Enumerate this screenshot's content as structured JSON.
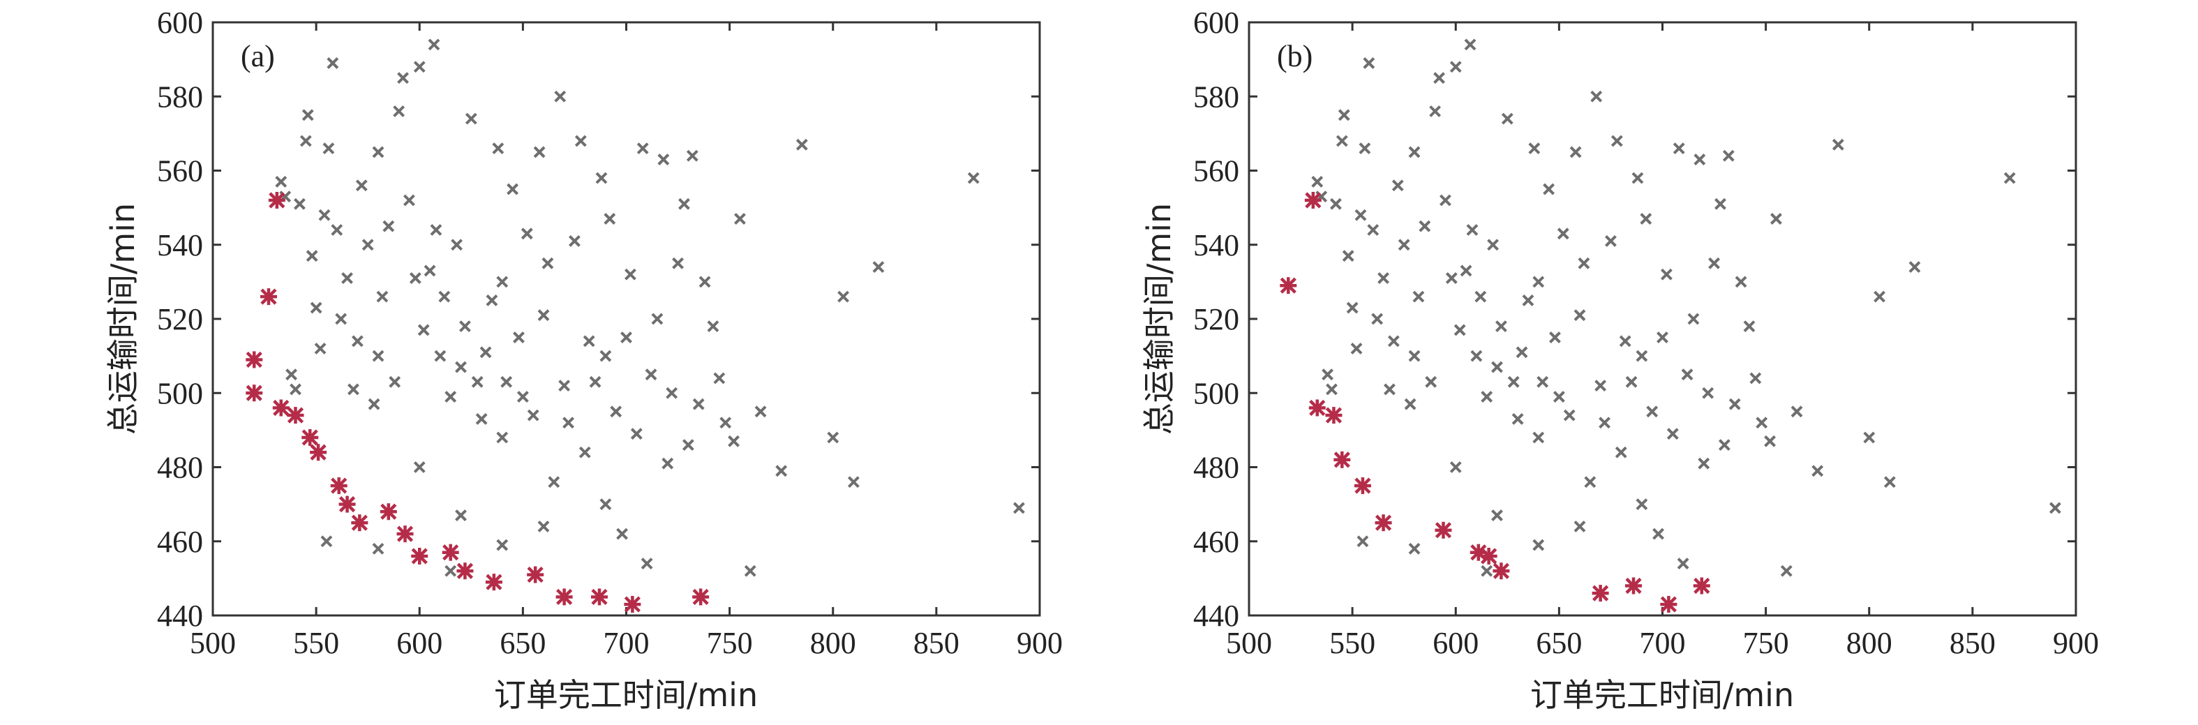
{
  "colors": {
    "dominated": "#6e6e6e",
    "pareto": "#b52c48",
    "axes": "#333333"
  },
  "chart_data": [
    {
      "type": "scatter",
      "panel_label": "(a)",
      "xlabel": "订单完工时间/min",
      "ylabel": "总运输时间/min",
      "xlim": [
        500,
        900
      ],
      "ylim": [
        440,
        600
      ],
      "xticks": [
        "500",
        "550",
        "600",
        "650",
        "700",
        "750",
        "800",
        "850",
        "900"
      ],
      "yticks": [
        "440",
        "460",
        "480",
        "500",
        "520",
        "540",
        "560",
        "580",
        "600"
      ],
      "grid": false,
      "series": [
        {
          "marker": "x",
          "color": "#6e6e6e",
          "points": [
            [
              533,
              557
            ],
            [
              535,
              553
            ],
            [
              538,
              505
            ],
            [
              540,
              501
            ],
            [
              542,
              551
            ],
            [
              545,
              568
            ],
            [
              546,
              575
            ],
            [
              548,
              537
            ],
            [
              550,
              523
            ],
            [
              552,
              512
            ],
            [
              554,
              548
            ],
            [
              556,
              566
            ],
            [
              558,
              589
            ],
            [
              560,
              544
            ],
            [
              562,
              520
            ],
            [
              565,
              531
            ],
            [
              568,
              501
            ],
            [
              570,
              514
            ],
            [
              572,
              556
            ],
            [
              575,
              540
            ],
            [
              578,
              497
            ],
            [
              580,
              565
            ],
            [
              582,
              526
            ],
            [
              585,
              545
            ],
            [
              588,
              503
            ],
            [
              590,
              576
            ],
            [
              592,
              585
            ],
            [
              595,
              552
            ],
            [
              598,
              531
            ],
            [
              600,
              588
            ],
            [
              602,
              517
            ],
            [
              605,
              533
            ],
            [
              607,
              594
            ],
            [
              608,
              544
            ],
            [
              610,
              510
            ],
            [
              612,
              526
            ],
            [
              615,
              499
            ],
            [
              618,
              540
            ],
            [
              620,
              507
            ],
            [
              622,
              518
            ],
            [
              625,
              574
            ],
            [
              628,
              503
            ],
            [
              630,
              493
            ],
            [
              632,
              511
            ],
            [
              635,
              525
            ],
            [
              638,
              566
            ],
            [
              640,
              488
            ],
            [
              642,
              503
            ],
            [
              645,
              555
            ],
            [
              648,
              515
            ],
            [
              650,
              499
            ],
            [
              652,
              543
            ],
            [
              655,
              494
            ],
            [
              658,
              565
            ],
            [
              660,
              521
            ],
            [
              662,
              535
            ],
            [
              665,
              476
            ],
            [
              668,
              580
            ],
            [
              670,
              502
            ],
            [
              672,
              492
            ],
            [
              675,
              541
            ],
            [
              678,
              568
            ],
            [
              680,
              484
            ],
            [
              682,
              514
            ],
            [
              685,
              503
            ],
            [
              688,
              558
            ],
            [
              690,
              470
            ],
            [
              692,
              547
            ],
            [
              695,
              495
            ],
            [
              698,
              462
            ],
            [
              700,
              515
            ],
            [
              702,
              532
            ],
            [
              705,
              489
            ],
            [
              708,
              566
            ],
            [
              710,
              454
            ],
            [
              712,
              505
            ],
            [
              715,
              520
            ],
            [
              718,
              563
            ],
            [
              720,
              481
            ],
            [
              722,
              500
            ],
            [
              725,
              535
            ],
            [
              728,
              551
            ],
            [
              730,
              486
            ],
            [
              732,
              564
            ],
            [
              735,
              497
            ],
            [
              738,
              530
            ],
            [
              742,
              518
            ],
            [
              745,
              504
            ],
            [
              748,
              492
            ],
            [
              752,
              487
            ],
            [
              755,
              547
            ],
            [
              760,
              452
            ],
            [
              765,
              495
            ],
            [
              775,
              479
            ],
            [
              785,
              567
            ],
            [
              800,
              488
            ],
            [
              805,
              526
            ],
            [
              810,
              476
            ],
            [
              822,
              534
            ],
            [
              868,
              558
            ],
            [
              890,
              469
            ],
            [
              555,
              460
            ],
            [
              580,
              458
            ],
            [
              615,
              452
            ],
            [
              640,
              459
            ],
            [
              600,
              480
            ],
            [
              620,
              467
            ],
            [
              660,
              464
            ],
            [
              690,
              510
            ],
            [
              640,
              530
            ],
            [
              580,
              510
            ]
          ]
        },
        {
          "marker": "*",
          "color": "#b52c48",
          "points": [
            [
              520,
              509
            ],
            [
              520,
              500
            ],
            [
              527,
              526
            ],
            [
              531,
              552
            ],
            [
              533,
              496
            ],
            [
              540,
              494
            ],
            [
              547,
              488
            ],
            [
              551,
              484
            ],
            [
              561,
              475
            ],
            [
              565,
              470
            ],
            [
              571,
              465
            ],
            [
              585,
              468
            ],
            [
              593,
              462
            ],
            [
              600,
              456
            ],
            [
              615,
              457
            ],
            [
              622,
              452
            ],
            [
              636,
              449
            ],
            [
              656,
              451
            ],
            [
              670,
              445
            ],
            [
              687,
              445
            ],
            [
              703,
              443
            ],
            [
              736,
              445
            ]
          ]
        }
      ]
    },
    {
      "type": "scatter",
      "panel_label": "(b)",
      "xlabel": "订单完工时间/min",
      "ylabel": "总运输时间/min",
      "xlim": [
        500,
        900
      ],
      "ylim": [
        440,
        600
      ],
      "xticks": [
        "500",
        "550",
        "600",
        "650",
        "700",
        "750",
        "800",
        "850",
        "900"
      ],
      "yticks": [
        "440",
        "460",
        "480",
        "500",
        "520",
        "540",
        "560",
        "580",
        "600"
      ],
      "grid": false,
      "series": [
        {
          "marker": "x",
          "color": "#6e6e6e",
          "points": [
            [
              533,
              557
            ],
            [
              535,
              553
            ],
            [
              538,
              505
            ],
            [
              540,
              501
            ],
            [
              542,
              551
            ],
            [
              545,
              568
            ],
            [
              546,
              575
            ],
            [
              548,
              537
            ],
            [
              550,
              523
            ],
            [
              552,
              512
            ],
            [
              554,
              548
            ],
            [
              556,
              566
            ],
            [
              558,
              589
            ],
            [
              560,
              544
            ],
            [
              562,
              520
            ],
            [
              565,
              531
            ],
            [
              568,
              501
            ],
            [
              570,
              514
            ],
            [
              572,
              556
            ],
            [
              575,
              540
            ],
            [
              578,
              497
            ],
            [
              580,
              565
            ],
            [
              582,
              526
            ],
            [
              585,
              545
            ],
            [
              588,
              503
            ],
            [
              590,
              576
            ],
            [
              592,
              585
            ],
            [
              595,
              552
            ],
            [
              598,
              531
            ],
            [
              600,
              588
            ],
            [
              602,
              517
            ],
            [
              605,
              533
            ],
            [
              607,
              594
            ],
            [
              608,
              544
            ],
            [
              610,
              510
            ],
            [
              612,
              526
            ],
            [
              615,
              499
            ],
            [
              618,
              540
            ],
            [
              620,
              507
            ],
            [
              622,
              518
            ],
            [
              625,
              574
            ],
            [
              628,
              503
            ],
            [
              630,
              493
            ],
            [
              632,
              511
            ],
            [
              635,
              525
            ],
            [
              638,
              566
            ],
            [
              640,
              488
            ],
            [
              642,
              503
            ],
            [
              645,
              555
            ],
            [
              648,
              515
            ],
            [
              650,
              499
            ],
            [
              652,
              543
            ],
            [
              655,
              494
            ],
            [
              658,
              565
            ],
            [
              660,
              521
            ],
            [
              662,
              535
            ],
            [
              665,
              476
            ],
            [
              668,
              580
            ],
            [
              670,
              502
            ],
            [
              672,
              492
            ],
            [
              675,
              541
            ],
            [
              678,
              568
            ],
            [
              680,
              484
            ],
            [
              682,
              514
            ],
            [
              685,
              503
            ],
            [
              688,
              558
            ],
            [
              690,
              470
            ],
            [
              692,
              547
            ],
            [
              695,
              495
            ],
            [
              698,
              462
            ],
            [
              700,
              515
            ],
            [
              702,
              532
            ],
            [
              705,
              489
            ],
            [
              708,
              566
            ],
            [
              710,
              454
            ],
            [
              712,
              505
            ],
            [
              715,
              520
            ],
            [
              718,
              563
            ],
            [
              720,
              481
            ],
            [
              722,
              500
            ],
            [
              725,
              535
            ],
            [
              728,
              551
            ],
            [
              730,
              486
            ],
            [
              732,
              564
            ],
            [
              735,
              497
            ],
            [
              738,
              530
            ],
            [
              742,
              518
            ],
            [
              745,
              504
            ],
            [
              748,
              492
            ],
            [
              752,
              487
            ],
            [
              755,
              547
            ],
            [
              760,
              452
            ],
            [
              765,
              495
            ],
            [
              775,
              479
            ],
            [
              785,
              567
            ],
            [
              800,
              488
            ],
            [
              805,
              526
            ],
            [
              810,
              476
            ],
            [
              822,
              534
            ],
            [
              868,
              558
            ],
            [
              890,
              469
            ],
            [
              555,
              460
            ],
            [
              580,
              458
            ],
            [
              615,
              452
            ],
            [
              640,
              459
            ],
            [
              600,
              480
            ],
            [
              620,
              467
            ],
            [
              660,
              464
            ],
            [
              690,
              510
            ],
            [
              640,
              530
            ],
            [
              580,
              510
            ]
          ]
        },
        {
          "marker": "*",
          "color": "#b52c48",
          "points": [
            [
              531,
              552
            ],
            [
              533,
              496
            ],
            [
              541,
              494
            ],
            [
              545,
              482
            ],
            [
              555,
              475
            ],
            [
              565,
              465
            ],
            [
              594,
              463
            ],
            [
              611,
              457
            ],
            [
              616,
              456
            ],
            [
              622,
              452
            ],
            [
              670,
              446
            ],
            [
              686,
              448
            ],
            [
              703,
              443
            ],
            [
              719,
              448
            ],
            [
              519,
              529
            ]
          ]
        }
      ]
    }
  ]
}
